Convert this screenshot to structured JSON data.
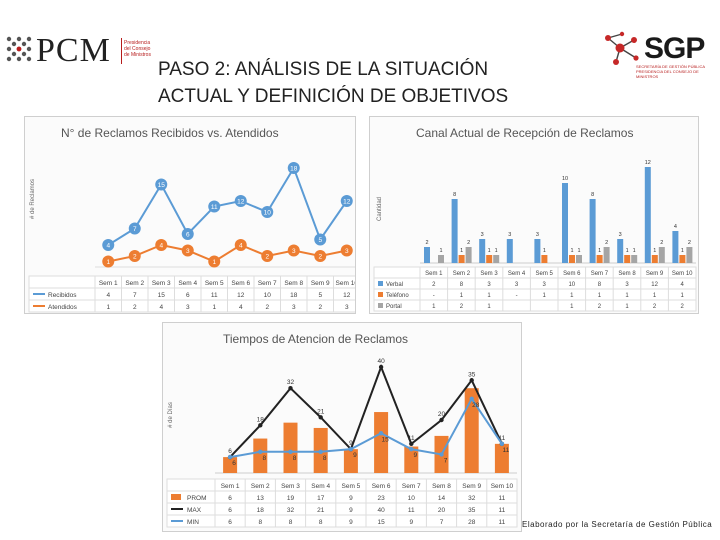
{
  "header": {
    "org_left": "PCM",
    "org_left_sub": [
      "Presidencia",
      "del Consejo",
      "de Ministros"
    ],
    "org_right": "SGP",
    "org_right_sub": [
      "SECRETARÍA DE GESTIÓN PÚBLICA",
      "PRESIDENCIA DEL CONSEJO DE MINISTROS"
    ],
    "title_line1": "PASO 2: ANÁLISIS DE LA SITUACIÓN",
    "title_line2": "ACTUAL Y DEFINICIÓN DE OBJETIVOS"
  },
  "footer": {
    "credit": "Elaborado por la Secretaría de Gestión Pública"
  },
  "colors": {
    "blue": "#5b9bd5",
    "orange": "#ed7d31",
    "gray": "#a5a5a5",
    "black": "#222222",
    "red_brand": "#b71c1c"
  },
  "chart_data": [
    {
      "type": "line",
      "title": "N° de Reclamos Recibidos vs. Atendidos",
      "ylabel": "# de Reclamos",
      "categories": [
        "Sem 1",
        "Sem 2",
        "Sem 3",
        "Sem 4",
        "Sem 5",
        "Sem 6",
        "Sem 7",
        "Sem 8",
        "Sem 9",
        "Sem 10"
      ],
      "series": [
        {
          "name": "Recibidos",
          "values": [
            4,
            7,
            15,
            6,
            11,
            12,
            10,
            18,
            5,
            12
          ],
          "table": [
            "4",
            "7",
            "15",
            "6",
            "11",
            "12",
            "10",
            "18",
            "5",
            "12"
          ]
        },
        {
          "name": "Atendidos",
          "values": [
            1,
            2,
            4,
            3,
            1,
            4,
            2,
            3,
            2,
            3
          ],
          "table": [
            "1",
            "2",
            "4",
            "3",
            "1",
            "4",
            "2",
            "3",
            "2",
            "3"
          ]
        }
      ]
    },
    {
      "type": "bar",
      "title": "Canal Actual de Recepción de Reclamos",
      "ylabel": "Cantidad",
      "categories": [
        "Sem 1",
        "Sem 2",
        "Sem 3",
        "Sem 4",
        "Sem 5",
        "Sem 6",
        "Sem 7",
        "Sem 8",
        "Sem 9",
        "Sem 10"
      ],
      "series": [
        {
          "name": "Verbal",
          "values": [
            2,
            8,
            3,
            3,
            3,
            10,
            8,
            3,
            12,
            4
          ],
          "table": [
            "2",
            "8",
            "3",
            "3",
            "3",
            "10",
            "8",
            "3",
            "12",
            "4"
          ]
        },
        {
          "name": "Teléfono",
          "values": [
            0,
            1,
            1,
            0,
            1,
            1,
            1,
            1,
            1,
            1
          ],
          "table": [
            "-",
            "1",
            "1",
            "-",
            "1",
            "1",
            "1",
            "1",
            "1",
            "1"
          ]
        },
        {
          "name": "Portal",
          "values": [
            1,
            2,
            1,
            0,
            0,
            1,
            2,
            1,
            2,
            2
          ],
          "table": [
            "1",
            "2",
            "1",
            "",
            "",
            "1",
            "2",
            "1",
            "2",
            "2"
          ]
        }
      ]
    },
    {
      "type": "line",
      "title": "Tiempos de Atencion de Reclamos",
      "ylabel": "# de Días",
      "categories": [
        "Sem 1",
        "Sem 2",
        "Sem 3",
        "Sem 4",
        "Sem 5",
        "Sem 6",
        "Sem 7",
        "Sem 8",
        "Sem 9",
        "Sem 10"
      ],
      "series": [
        {
          "name": "PROM",
          "kind": "bar",
          "values": [
            6,
            13,
            19,
            17,
            9,
            23,
            10,
            14,
            32,
            11
          ],
          "table": [
            "6",
            "13",
            "19",
            "17",
            "9",
            "23",
            "10",
            "14",
            "32",
            "11"
          ]
        },
        {
          "name": "MAX",
          "kind": "line",
          "values": [
            6,
            18,
            32,
            21,
            9,
            40,
            11,
            20,
            35,
            11
          ],
          "table": [
            "6",
            "18",
            "32",
            "21",
            "9",
            "40",
            "11",
            "20",
            "35",
            "11"
          ]
        },
        {
          "name": "MIN",
          "kind": "line",
          "values": [
            6,
            8,
            8,
            8,
            9,
            15,
            9,
            7,
            28,
            11
          ],
          "table": [
            "6",
            "8",
            "8",
            "8",
            "9",
            "15",
            "9",
            "7",
            "28",
            "11"
          ]
        }
      ]
    }
  ]
}
